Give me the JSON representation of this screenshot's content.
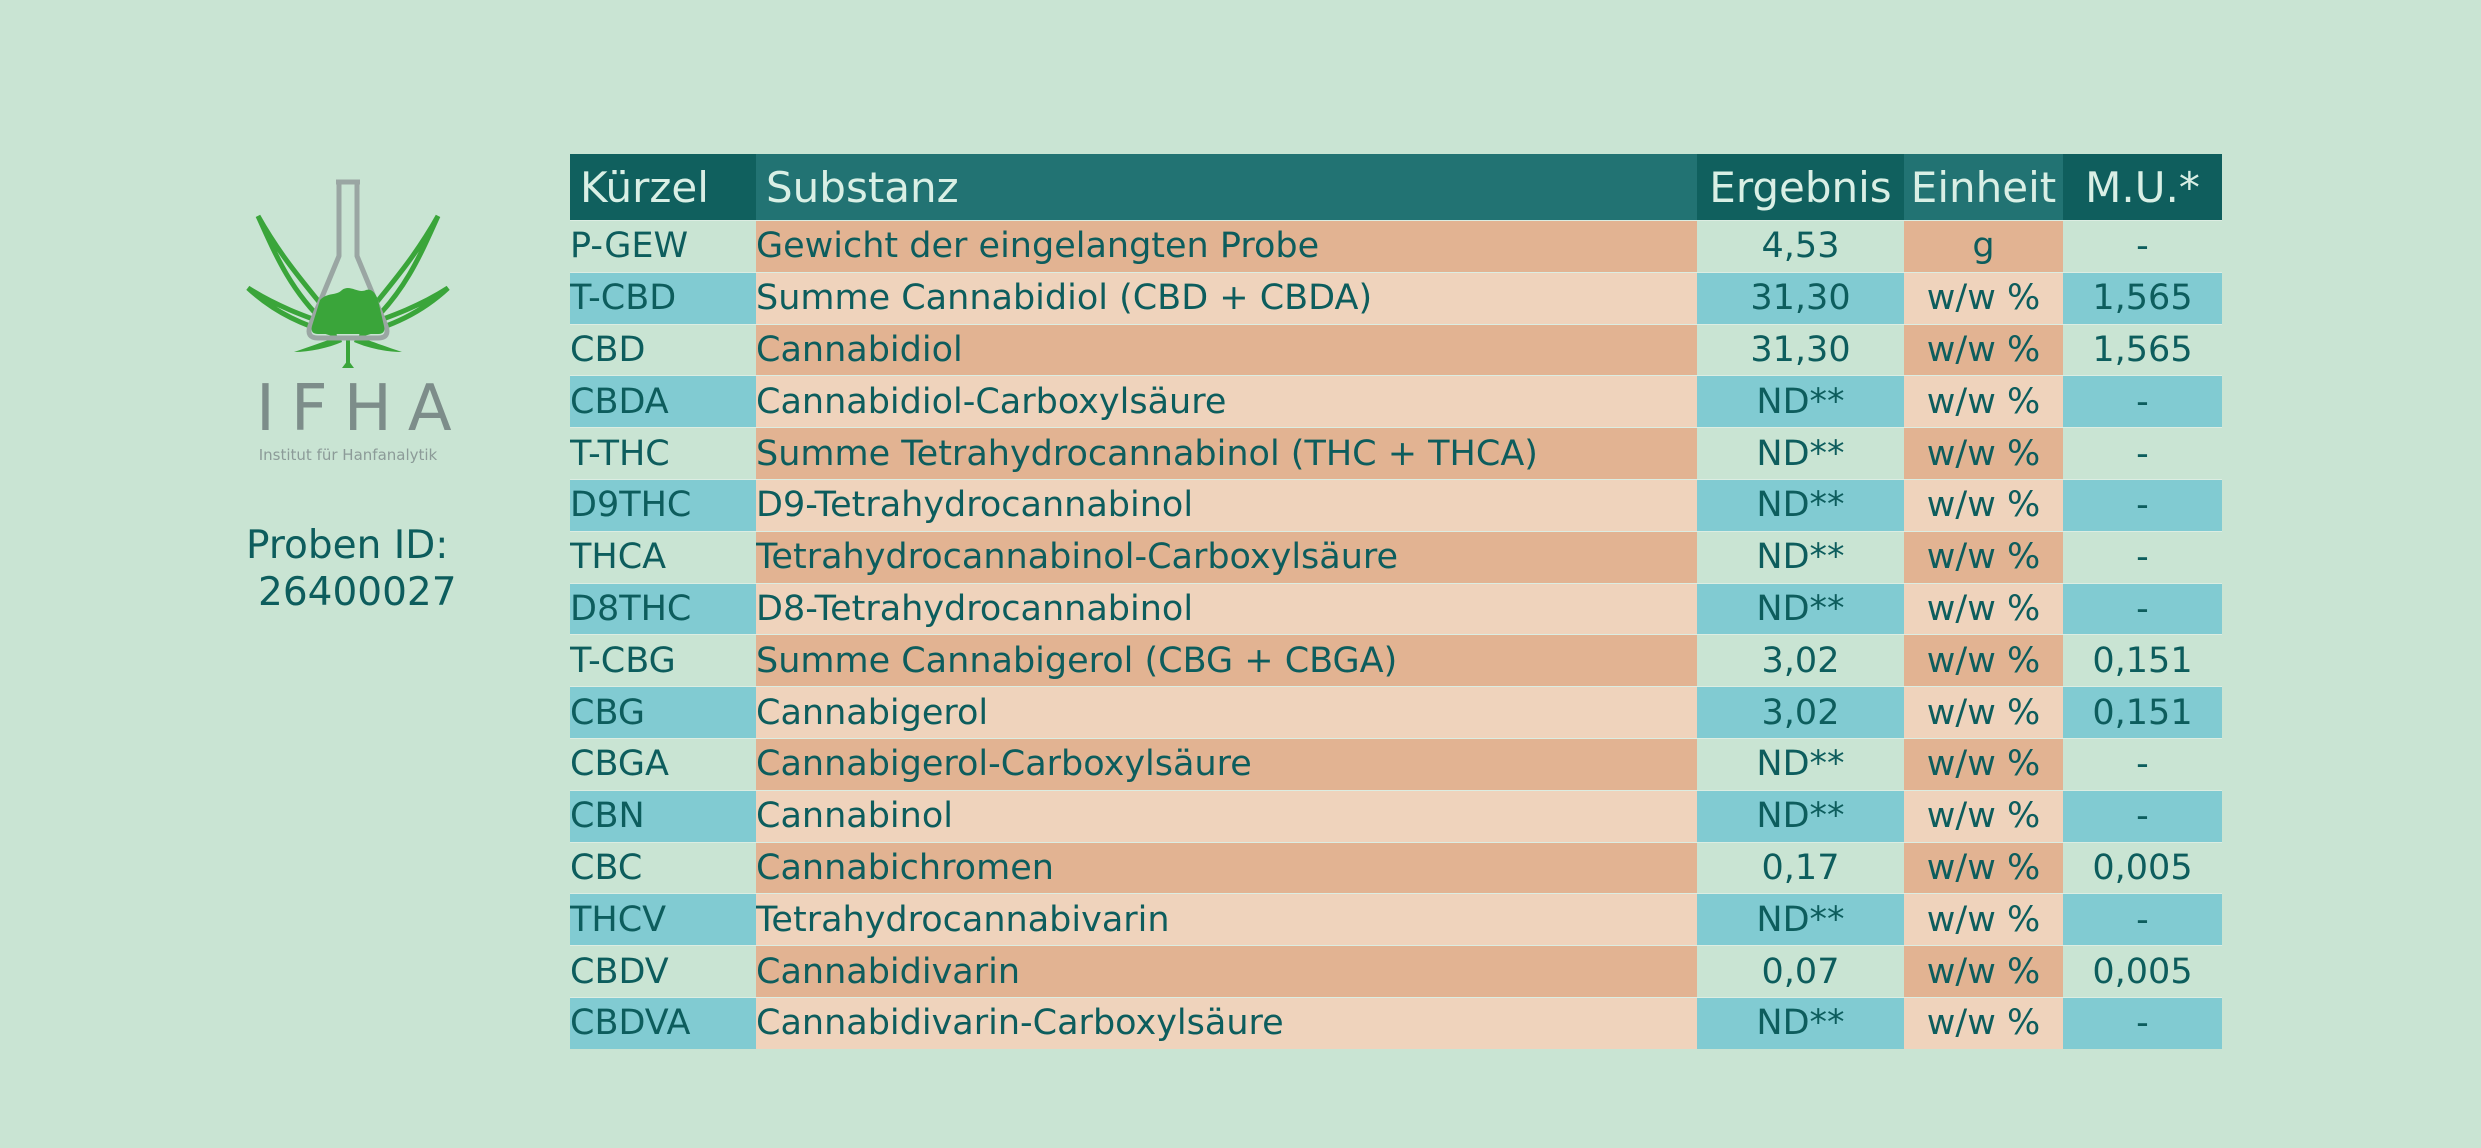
{
  "logo": {
    "title": "IFHA",
    "subtitle": "Institut für Hanfanalytik",
    "icon": "cannabis-leaf-flask-icon"
  },
  "sample": {
    "label": "Proben ID:",
    "id": "26400027"
  },
  "table": {
    "headers": {
      "kurzel": "Kürzel",
      "substanz": "Substanz",
      "ergebnis": "Ergebnis",
      "einheit": "Einheit",
      "mu": "M.U.*"
    },
    "rows": [
      {
        "kurzel": "P-GEW",
        "substanz": "Gewicht der eingelangten Probe",
        "ergebnis": "4,53",
        "einheit": "g",
        "mu": "-"
      },
      {
        "kurzel": "T-CBD",
        "substanz": "Summe Cannabidiol (CBD + CBDA)",
        "ergebnis": "31,30",
        "einheit": "w/w %",
        "mu": "1,565"
      },
      {
        "kurzel": "CBD",
        "substanz": "Cannabidiol",
        "ergebnis": "31,30",
        "einheit": "w/w %",
        "mu": "1,565"
      },
      {
        "kurzel": "CBDA",
        "substanz": "Cannabidiol-Carboxylsäure",
        "ergebnis": "ND**",
        "einheit": "w/w %",
        "mu": "-"
      },
      {
        "kurzel": "T-THC",
        "substanz": "Summe Tetrahydrocannabinol (THC + THCA)",
        "ergebnis": "ND**",
        "einheit": "w/w %",
        "mu": "-"
      },
      {
        "kurzel": "D9THC",
        "substanz": "D9-Tetrahydrocannabinol",
        "ergebnis": "ND**",
        "einheit": "w/w %",
        "mu": "-"
      },
      {
        "kurzel": "THCA",
        "substanz": "Tetrahydrocannabinol-Carboxylsäure",
        "ergebnis": "ND**",
        "einheit": "w/w %",
        "mu": "-"
      },
      {
        "kurzel": "D8THC",
        "substanz": "D8-Tetrahydrocannabinol",
        "ergebnis": "ND**",
        "einheit": "w/w %",
        "mu": "-"
      },
      {
        "kurzel": "T-CBG",
        "substanz": "Summe Cannabigerol (CBG + CBGA)",
        "ergebnis": "3,02",
        "einheit": "w/w %",
        "mu": "0,151"
      },
      {
        "kurzel": "CBG",
        "substanz": "Cannabigerol",
        "ergebnis": "3,02",
        "einheit": "w/w %",
        "mu": "0,151"
      },
      {
        "kurzel": "CBGA",
        "substanz": "Cannabigerol-Carboxylsäure",
        "ergebnis": "ND**",
        "einheit": "w/w %",
        "mu": "-"
      },
      {
        "kurzel": "CBN",
        "substanz": "Cannabinol",
        "ergebnis": "ND**",
        "einheit": "w/w %",
        "mu": "-"
      },
      {
        "kurzel": "CBC",
        "substanz": "Cannabichromen",
        "ergebnis": "0,17",
        "einheit": "w/w %",
        "mu": "0,005"
      },
      {
        "kurzel": "THCV",
        "substanz": "Tetrahydrocannabivarin",
        "ergebnis": "ND**",
        "einheit": "w/w %",
        "mu": "-"
      },
      {
        "kurzel": "CBDV",
        "substanz": "Cannabidivarin",
        "ergebnis": "0,07",
        "einheit": "w/w %",
        "mu": "0,005"
      },
      {
        "kurzel": "CBDVA",
        "substanz": "Cannabidivarin-Carboxylsäure",
        "ergebnis": "ND**",
        "einheit": "w/w %",
        "mu": "-"
      }
    ]
  },
  "colors": {
    "background": "#c9e4d3",
    "header_teal": "#227373",
    "header_dark": "#10605e",
    "row_cyan": "#81cbd2",
    "row_tan": "#e2b392",
    "row_peach": "#efd3bc",
    "text": "#0d5d5d",
    "logo_green": "#3aa53a"
  }
}
